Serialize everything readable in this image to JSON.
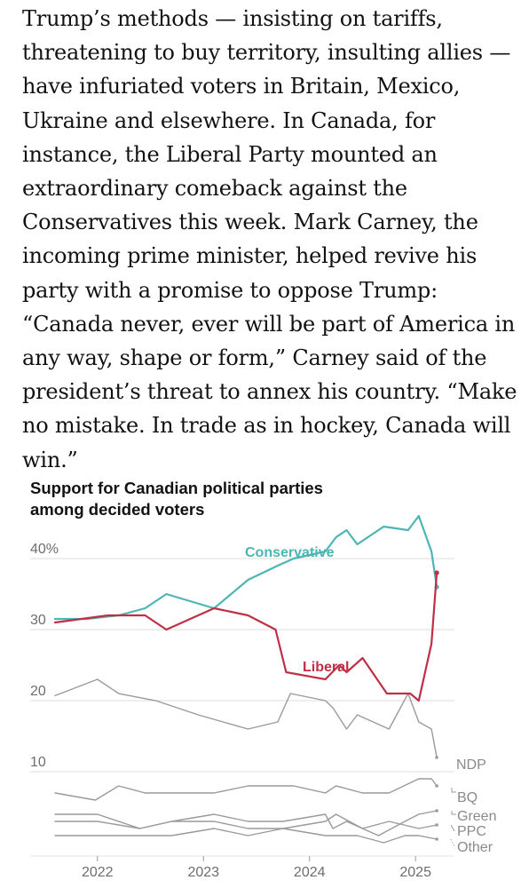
{
  "article": {
    "paragraph": "Trump’s methods — insisting on tariffs, threatening to buy territory, insulting allies — have infuriated voters in Britain, Mexico, Ukraine and elsewhere. In Canada, for instance, the Liberal Party mounted an extraordinary comeback against the Conservatives this week. Mark Carney, the incoming prime minister, helped revive his party with a promise to oppose Trump: “Canada never, ever will be part of America in any way, shape or form,” Carney said of the president’s threat to annex his country. “Make no mistake. In trade as in hockey, Canada will win.”"
  },
  "chart_data": {
    "type": "line",
    "title_lines": [
      "Support for Canadian political parties",
      "among decided voters"
    ],
    "y_ticks": [
      {
        "value": 40,
        "label": "40%"
      },
      {
        "value": 30,
        "label": "30"
      },
      {
        "value": 20,
        "label": "20"
      },
      {
        "value": 10,
        "label": "10"
      }
    ],
    "x_ticks": [
      {
        "value": 2022,
        "label": "2022"
      },
      {
        "value": 2023,
        "label": "2023"
      },
      {
        "value": 2024,
        "label": "2024"
      },
      {
        "value": 2025,
        "label": "2025"
      }
    ],
    "ylim": [
      0,
      47
    ],
    "xlim": [
      2021.6,
      2025.35
    ],
    "grid": true,
    "series": [
      {
        "name": "Conservative",
        "color": "#4cb6b4",
        "labeled": true,
        "x": [
          2021.6,
          2021.9,
          2022.2,
          2022.45,
          2022.65,
          2023.1,
          2023.42,
          2023.7,
          2023.85,
          2024.15,
          2024.25,
          2024.35,
          2024.45,
          2024.7,
          2024.93,
          2025.03,
          2025.15,
          2025.2
        ],
        "y": [
          31.5,
          31.5,
          32,
          33,
          35,
          33,
          37,
          39,
          40,
          41,
          43,
          44,
          42,
          44.5,
          44,
          46,
          41,
          36
        ]
      },
      {
        "name": "Liberal",
        "color": "#bf2f45",
        "labeled": true,
        "x": [
          2021.6,
          2022.1,
          2022.45,
          2022.65,
          2023.1,
          2023.42,
          2023.68,
          2023.78,
          2024.15,
          2024.28,
          2024.35,
          2024.5,
          2024.73,
          2024.95,
          2025.03,
          2025.15,
          2025.2
        ],
        "y": [
          31,
          32,
          32,
          30,
          33,
          32,
          30,
          24,
          23,
          25,
          24,
          26,
          21,
          21,
          20,
          28,
          38
        ]
      },
      {
        "name": "NDP",
        "color": "#9a9a9a",
        "labeled": true,
        "x": [
          2021.6,
          2022.0,
          2022.2,
          2022.55,
          2022.95,
          2023.42,
          2023.7,
          2023.82,
          2024.15,
          2024.22,
          2024.35,
          2024.45,
          2024.75,
          2024.93,
          2025.03,
          2025.15,
          2025.2
        ],
        "y": [
          20.7,
          23,
          21,
          20,
          18,
          16,
          17,
          21,
          20,
          19,
          16,
          18,
          16,
          21,
          17,
          16,
          12
        ]
      },
      {
        "name": "BQ",
        "color": "#9a9a9a",
        "labeled": true,
        "x": [
          2021.6,
          2021.98,
          2022.2,
          2022.45,
          2022.7,
          2023.1,
          2023.42,
          2023.85,
          2024.15,
          2024.25,
          2024.5,
          2024.75,
          2025.03,
          2025.15,
          2025.2
        ],
        "y": [
          7,
          6,
          8,
          7,
          7,
          7,
          8,
          8,
          7,
          8,
          7,
          7,
          9,
          9,
          8
        ]
      },
      {
        "name": "Green",
        "color": "#9a9a9a",
        "labeled": true,
        "x": [
          2021.6,
          2022.0,
          2022.4,
          2022.7,
          2023.1,
          2023.42,
          2023.75,
          2024.15,
          2024.22,
          2024.35,
          2024.65,
          2024.9,
          2025.03,
          2025.2
        ],
        "y": [
          4,
          4,
          2,
          3,
          4,
          3,
          3,
          4,
          2,
          3,
          1,
          3,
          4,
          4.5
        ]
      },
      {
        "name": "PPC",
        "color": "#9a9a9a",
        "labeled": true,
        "x": [
          2021.6,
          2022.0,
          2022.4,
          2022.7,
          2023.1,
          2023.42,
          2023.75,
          2024.15,
          2024.25,
          2024.5,
          2024.75,
          2025.03,
          2025.2
        ],
        "y": [
          3,
          3,
          2,
          3,
          3,
          2,
          2,
          3,
          4,
          2,
          3,
          2,
          2.5
        ]
      },
      {
        "name": "Other",
        "color": "#9a9a9a",
        "labeled": true,
        "x": [
          2021.6,
          2022.0,
          2022.4,
          2022.7,
          2023.1,
          2023.42,
          2023.75,
          2024.15,
          2024.45,
          2024.7,
          2024.9,
          2025.03,
          2025.2
        ],
        "y": [
          1,
          1,
          1,
          1,
          2,
          1,
          2,
          1,
          1,
          0,
          1,
          1,
          0.5
        ]
      }
    ]
  }
}
